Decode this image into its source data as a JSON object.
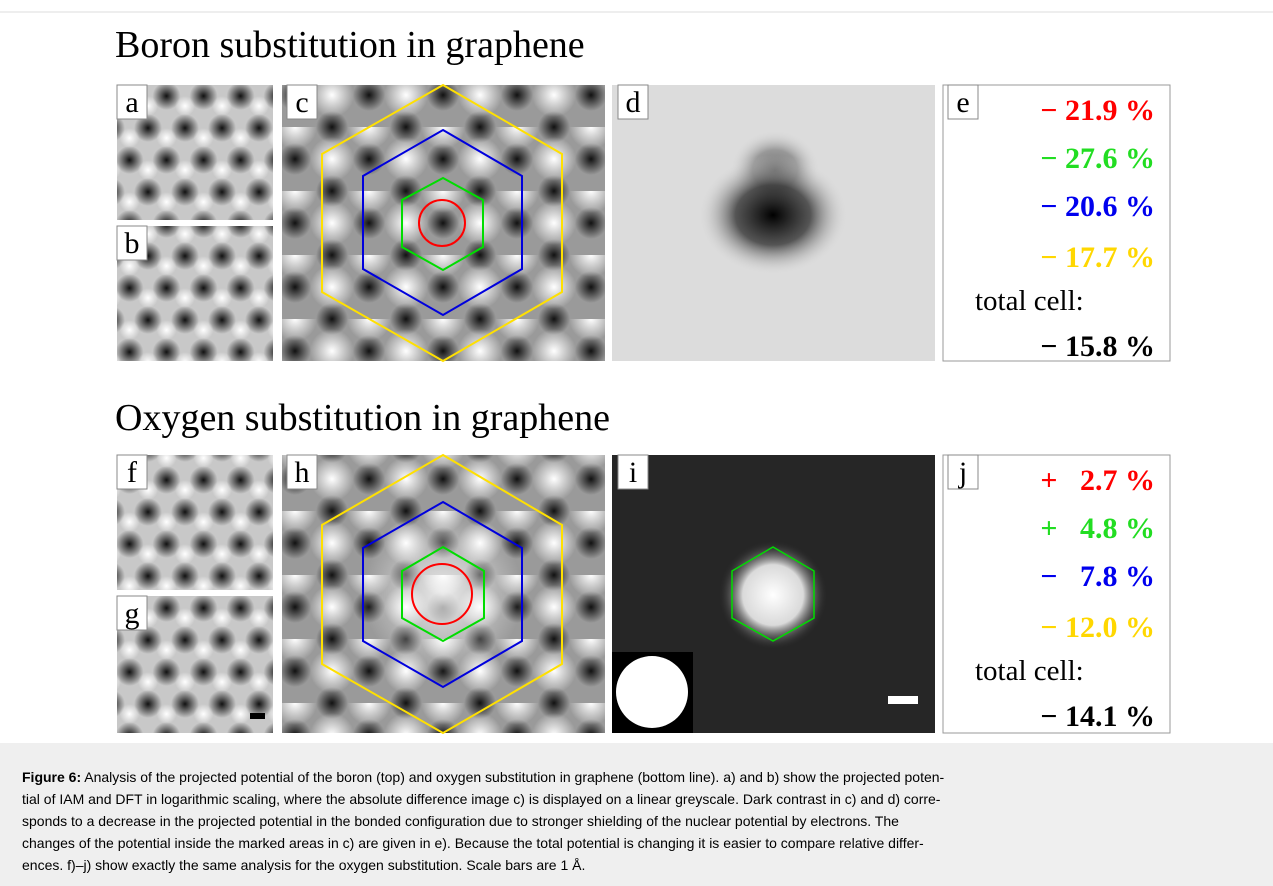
{
  "rows": [
    {
      "title": "Boron substitution in graphene",
      "panel_labels": [
        "a",
        "b",
        "c",
        "d",
        "e"
      ],
      "changes": [
        {
          "text": "− 21.9 %",
          "color": "#ff0000"
        },
        {
          "text": "− 27.6 %",
          "color": "#22dd22"
        },
        {
          "text": "− 20.6 %",
          "color": "#0000ee"
        },
        {
          "text": "− 17.7 %",
          "color": "#ffd700"
        }
      ],
      "total_label": "total cell:",
      "total": "− 15.8 %"
    },
    {
      "title": "Oxygen substitution in graphene",
      "panel_labels": [
        "f",
        "g",
        "h",
        "i",
        "j"
      ],
      "changes": [
        {
          "text": "+   2.7 %",
          "color": "#ff0000"
        },
        {
          "text": "+   4.8 %",
          "color": "#22dd22"
        },
        {
          "text": "−   7.8 %",
          "color": "#0000ee"
        },
        {
          "text": "− 12.0 %",
          "color": "#ffd700"
        }
      ],
      "total_label": "total cell:",
      "total": "− 14.1 %"
    }
  ],
  "caption": {
    "label": "Figure 6:",
    "lines": [
      " Analysis of the projected potential of the boron (top) and oxygen substitution in graphene (bottom line). a) and b) show the projected poten-",
      "tial of IAM and DFT in logarithmic scaling, where the absolute difference image c) is displayed on a linear greyscale. Dark contrast in c) and d) corre-",
      "sponds to a decrease in the projected potential in the bonded configuration due to stronger shielding of the nuclear potential by electrons. The",
      "changes of the potential inside the marked areas in c) are given in e). Because the total potential is changing it is easier to compare relative differ-",
      "ences. f)–j) show exactly the same analysis for the oxygen substitution. Scale bars are 1 Å."
    ]
  }
}
